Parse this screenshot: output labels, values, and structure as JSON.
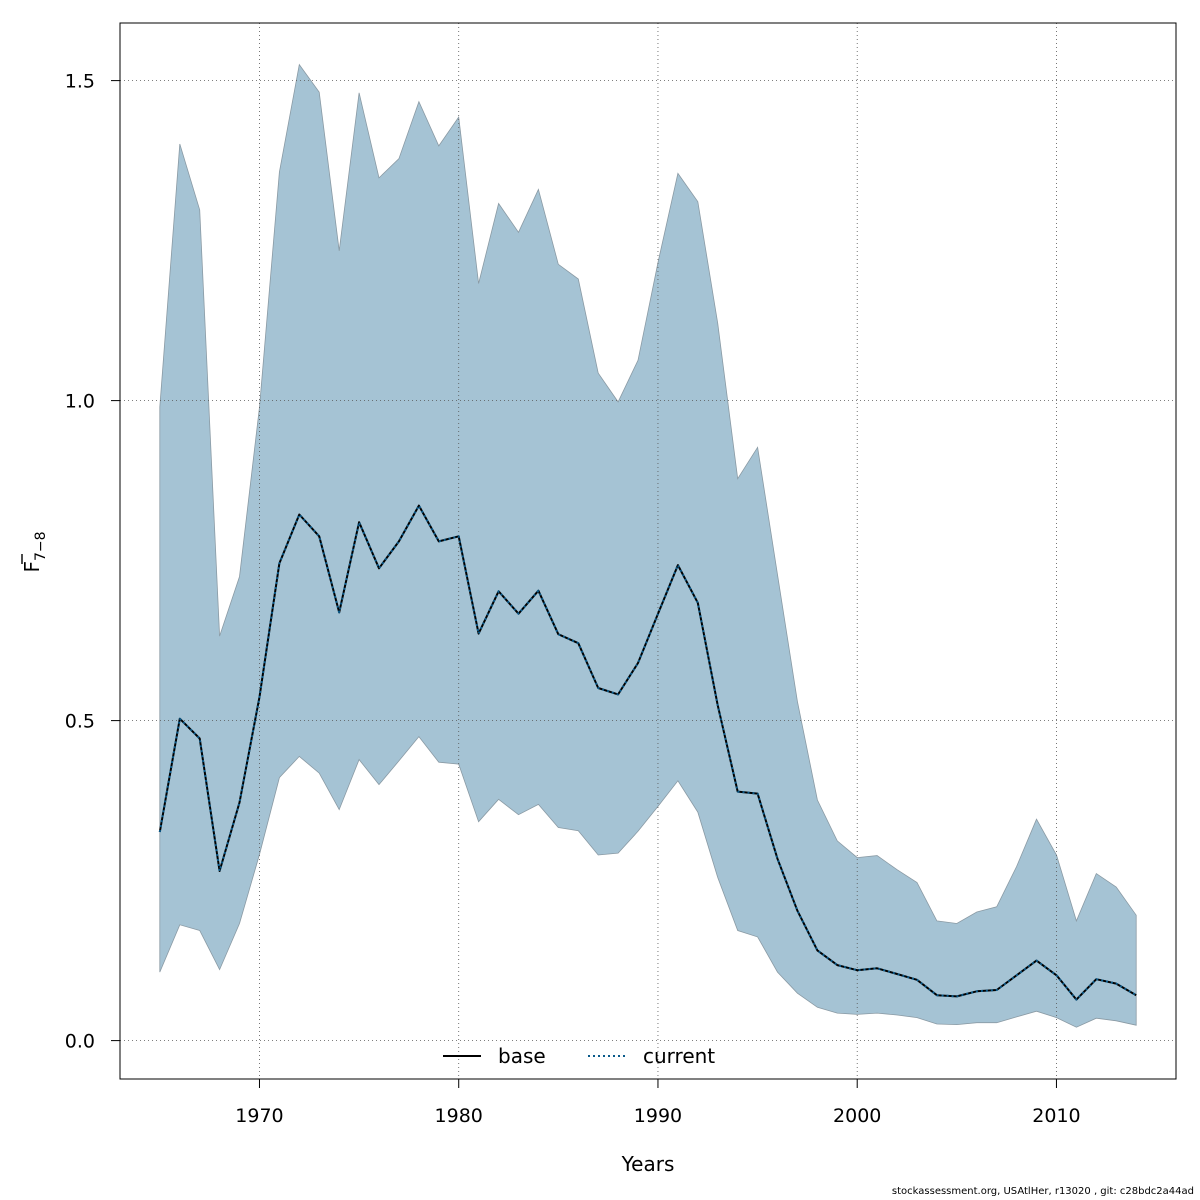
{
  "chart_data": {
    "type": "area",
    "xlabel": "Years",
    "ylabel_main": "F",
    "ylabel_sub": "7−8",
    "xlim": [
      1963,
      2016
    ],
    "ylim": [
      -0.06,
      1.59
    ],
    "xticks": [
      1970,
      1980,
      1990,
      2000,
      2010
    ],
    "yticks": [
      0.0,
      0.5,
      1.0,
      1.5
    ],
    "ytick_labels": [
      "0.0",
      "0.5",
      "1.0",
      "1.5"
    ],
    "grid": true,
    "legend": {
      "placement": "bottom-center",
      "entries": [
        {
          "label": "base",
          "style": "solid",
          "color": "#000000"
        },
        {
          "label": "current",
          "style": "dotted",
          "color": "#0a5a8a"
        }
      ]
    },
    "band_color": "#a5c3d4",
    "x": [
      1965,
      1966,
      1967,
      1968,
      1969,
      1970,
      1971,
      1972,
      1973,
      1974,
      1975,
      1976,
      1977,
      1978,
      1979,
      1980,
      1981,
      1982,
      1983,
      1984,
      1985,
      1986,
      1987,
      1988,
      1989,
      1990,
      1991,
      1992,
      1993,
      1994,
      1995,
      1996,
      1997,
      1998,
      1999,
      2000,
      2001,
      2002,
      2003,
      2004,
      2005,
      2006,
      2007,
      2008,
      2009,
      2010,
      2011,
      2012,
      2013,
      2014
    ],
    "series": [
      {
        "name": "base",
        "values": [
          0.326,
          0.503,
          0.472,
          0.265,
          0.372,
          0.537,
          0.746,
          0.822,
          0.788,
          0.669,
          0.81,
          0.738,
          0.78,
          0.836,
          0.78,
          0.788,
          0.636,
          0.702,
          0.667,
          0.703,
          0.635,
          0.621,
          0.551,
          0.541,
          0.59,
          0.667,
          0.743,
          0.684,
          0.524,
          0.389,
          0.386,
          0.284,
          0.203,
          0.141,
          0.118,
          0.11,
          0.113,
          0.104,
          0.095,
          0.071,
          0.069,
          0.077,
          0.079,
          0.102,
          0.125,
          0.102,
          0.064,
          0.096,
          0.089,
          0.071
        ]
      },
      {
        "name": "current",
        "values": [
          0.326,
          0.503,
          0.472,
          0.265,
          0.372,
          0.537,
          0.746,
          0.822,
          0.788,
          0.669,
          0.81,
          0.738,
          0.78,
          0.836,
          0.78,
          0.788,
          0.636,
          0.702,
          0.667,
          0.703,
          0.635,
          0.621,
          0.551,
          0.541,
          0.59,
          0.667,
          0.743,
          0.684,
          0.524,
          0.389,
          0.386,
          0.284,
          0.203,
          0.141,
          0.118,
          0.11,
          0.113,
          0.104,
          0.095,
          0.071,
          0.069,
          0.077,
          0.079,
          0.102,
          0.125,
          0.102,
          0.064,
          0.096,
          0.089,
          0.071
        ]
      }
    ],
    "band_lower": [
      0.107,
      0.181,
      0.172,
      0.111,
      0.183,
      0.291,
      0.411,
      0.444,
      0.418,
      0.361,
      0.439,
      0.4,
      0.437,
      0.475,
      0.435,
      0.432,
      0.342,
      0.377,
      0.353,
      0.369,
      0.333,
      0.328,
      0.29,
      0.293,
      0.327,
      0.366,
      0.406,
      0.357,
      0.255,
      0.172,
      0.162,
      0.107,
      0.074,
      0.052,
      0.043,
      0.041,
      0.043,
      0.04,
      0.036,
      0.026,
      0.025,
      0.028,
      0.028,
      0.037,
      0.046,
      0.036,
      0.021,
      0.035,
      0.031,
      0.024
    ],
    "band_upper": [
      0.99,
      1.401,
      1.298,
      0.632,
      0.725,
      0.99,
      1.357,
      1.525,
      1.482,
      1.234,
      1.481,
      1.348,
      1.378,
      1.467,
      1.398,
      1.443,
      1.183,
      1.308,
      1.263,
      1.33,
      1.213,
      1.19,
      1.043,
      0.998,
      1.063,
      1.216,
      1.355,
      1.311,
      1.121,
      0.878,
      0.927,
      0.728,
      0.53,
      0.376,
      0.312,
      0.286,
      0.289,
      0.267,
      0.247,
      0.187,
      0.183,
      0.201,
      0.209,
      0.272,
      0.346,
      0.29,
      0.187,
      0.261,
      0.24,
      0.196
    ]
  },
  "footer": "stockassessment.org, USAtlHer, r13020 , git: c28bdc2a44ad"
}
